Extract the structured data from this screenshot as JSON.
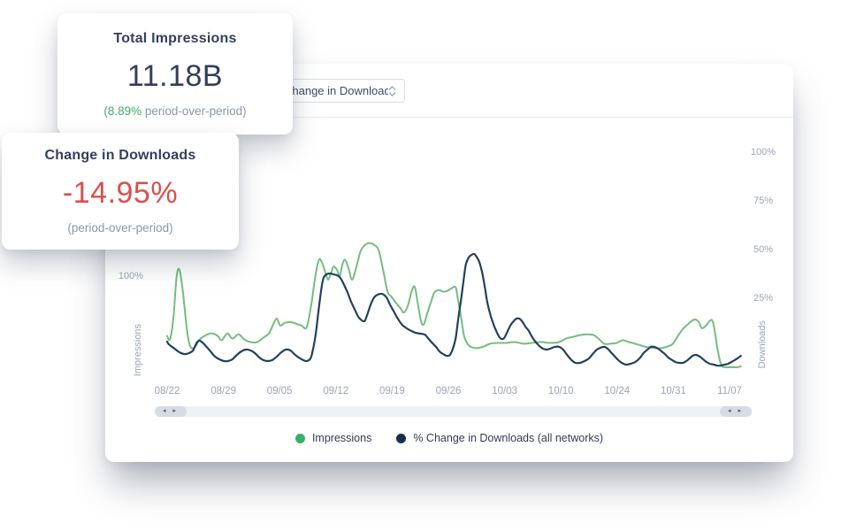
{
  "colors": {
    "impressions_line": "#74bd7e",
    "impressions_dot": "#36b06a",
    "downloads_line": "#24405e",
    "downloads_dot": "#152f4e",
    "negative_value": "#d9504c",
    "positive_delta": "#41ae66"
  },
  "stat_cards": [
    {
      "title": "Total Impressions",
      "value": "11.18B",
      "delta": "(8.89%",
      "delta_rest": " period-over-period)"
    },
    {
      "title": "Change in Downloads",
      "value": "-14.95%",
      "subtitle": "(period-over-period)"
    }
  ],
  "panel": {
    "select": {
      "value": "Change in Downloads"
    }
  },
  "scrollbar": {
    "left_arrows": "◂ ▸",
    "right_arrows": "◂ ▸"
  },
  "chart_data": {
    "type": "line",
    "title": "",
    "x_labels": [
      "08/22",
      "08/29",
      "09/05",
      "09/12",
      "09/19",
      "09/26",
      "10/03",
      "10/10",
      "10/24",
      "10/31",
      "11/07"
    ],
    "axes": {
      "left": {
        "title": "Impressions",
        "ticks": [
          {
            "label": "100%",
            "value": 100
          }
        ]
      },
      "right": {
        "title": "Downloads",
        "ticks": [
          {
            "label": "100%",
            "value": 100
          },
          {
            "label": "75%",
            "value": 75
          },
          {
            "label": "50%",
            "value": 50
          },
          {
            "label": "25%",
            "value": 25
          }
        ]
      }
    },
    "grid": false,
    "legend_position": "bottom",
    "legend": [
      {
        "label": "Impressions",
        "color": "#36b06a"
      },
      {
        "label": "% Change in Downloads (all networks)",
        "color": "#152f4e"
      }
    ],
    "series": [
      {
        "name": "Impressions",
        "axis": "left",
        "color": "#74bd7e",
        "unit": "% (left axis)",
        "points": [
          [
            0,
            31
          ],
          [
            0.05,
            27
          ],
          [
            0.11,
            51
          ],
          [
            0.17,
            100
          ],
          [
            0.22,
            107
          ],
          [
            0.28,
            82
          ],
          [
            0.35,
            39
          ],
          [
            0.41,
            19
          ],
          [
            0.49,
            18
          ],
          [
            0.58,
            27
          ],
          [
            0.69,
            32
          ],
          [
            0.8,
            34
          ],
          [
            0.9,
            31
          ],
          [
            0.97,
            26
          ],
          [
            1.07,
            34
          ],
          [
            1.16,
            28
          ],
          [
            1.27,
            33
          ],
          [
            1.37,
            27
          ],
          [
            1.48,
            24
          ],
          [
            1.6,
            24
          ],
          [
            1.71,
            29
          ],
          [
            1.81,
            34
          ],
          [
            1.89,
            45
          ],
          [
            1.95,
            51
          ],
          [
            2.01,
            43
          ],
          [
            2.09,
            46
          ],
          [
            2.19,
            47
          ],
          [
            2.3,
            45
          ],
          [
            2.39,
            43
          ],
          [
            2.48,
            41
          ],
          [
            2.56,
            66
          ],
          [
            2.64,
            102
          ],
          [
            2.7,
            119
          ],
          [
            2.75,
            116
          ],
          [
            2.81,
            105
          ],
          [
            2.86,
            96
          ],
          [
            2.91,
            103
          ],
          [
            2.96,
            111
          ],
          [
            3.02,
            107
          ],
          [
            3.07,
            100
          ],
          [
            3.11,
            112
          ],
          [
            3.16,
            119
          ],
          [
            3.22,
            110
          ],
          [
            3.29,
            96
          ],
          [
            3.37,
            112
          ],
          [
            3.44,
            129
          ],
          [
            3.52,
            136
          ],
          [
            3.6,
            138
          ],
          [
            3.68,
            136
          ],
          [
            3.76,
            130
          ],
          [
            3.84,
            107
          ],
          [
            3.92,
            82
          ],
          [
            3.99,
            76
          ],
          [
            4.07,
            69
          ],
          [
            4.15,
            63
          ],
          [
            4.21,
            58
          ],
          [
            4.28,
            66
          ],
          [
            4.34,
            81
          ],
          [
            4.4,
            88
          ],
          [
            4.45,
            71
          ],
          [
            4.51,
            49
          ],
          [
            4.56,
            44
          ],
          [
            4.62,
            56
          ],
          [
            4.69,
            70
          ],
          [
            4.75,
            81
          ],
          [
            4.83,
            84
          ],
          [
            4.91,
            82
          ],
          [
            4.98,
            83
          ],
          [
            5.06,
            86
          ],
          [
            5.13,
            87
          ],
          [
            5.17,
            73
          ],
          [
            5.22,
            55
          ],
          [
            5.28,
            31
          ],
          [
            5.35,
            21
          ],
          [
            5.42,
            18
          ],
          [
            5.52,
            17
          ],
          [
            5.63,
            19
          ],
          [
            5.74,
            22
          ],
          [
            5.86,
            23
          ],
          [
            6.02,
            23
          ],
          [
            6.18,
            24
          ],
          [
            6.34,
            22
          ],
          [
            6.49,
            23
          ],
          [
            6.65,
            24
          ],
          [
            6.81,
            23
          ],
          [
            6.97,
            24
          ],
          [
            7.09,
            28
          ],
          [
            7.22,
            30
          ],
          [
            7.34,
            32
          ],
          [
            7.47,
            33
          ],
          [
            7.58,
            32
          ],
          [
            7.67,
            28
          ],
          [
            7.77,
            22
          ],
          [
            7.88,
            22
          ],
          [
            7.99,
            23
          ],
          [
            8.1,
            26
          ],
          [
            8.21,
            24
          ],
          [
            8.32,
            22
          ],
          [
            8.43,
            20
          ],
          [
            8.54,
            18
          ],
          [
            8.66,
            17
          ],
          [
            8.79,
            17
          ],
          [
            8.9,
            19
          ],
          [
            8.99,
            22
          ],
          [
            9.09,
            32
          ],
          [
            9.17,
            39
          ],
          [
            9.25,
            44
          ],
          [
            9.32,
            48
          ],
          [
            9.39,
            50
          ],
          [
            9.45,
            47
          ],
          [
            9.51,
            40
          ],
          [
            9.58,
            43
          ],
          [
            9.64,
            48
          ],
          [
            9.69,
            49
          ],
          [
            9.73,
            39
          ],
          [
            9.78,
            18
          ],
          [
            9.83,
            2
          ],
          [
            9.87,
            -4
          ],
          [
            9.95,
            -5
          ],
          [
            10.05,
            -5
          ],
          [
            10.14,
            -5
          ],
          [
            10.2,
            -4
          ]
        ]
      },
      {
        "name": "% Change in Downloads (all networks)",
        "axis": "right",
        "color": "#24405e",
        "unit": "%",
        "points": [
          [
            0,
            0
          ],
          [
            0.03,
            -1.4
          ],
          [
            0.13,
            -3.6
          ],
          [
            0.22,
            -5.5
          ],
          [
            0.31,
            -6.4
          ],
          [
            0.39,
            -5.9
          ],
          [
            0.46,
            -4.5
          ],
          [
            0.52,
            -0.9
          ],
          [
            0.57,
            0.5
          ],
          [
            0.63,
            -0.5
          ],
          [
            0.69,
            -2.3
          ],
          [
            0.77,
            -5
          ],
          [
            0.85,
            -7.7
          ],
          [
            0.93,
            -9.1
          ],
          [
            1.01,
            -10
          ],
          [
            1.08,
            -10
          ],
          [
            1.16,
            -9.1
          ],
          [
            1.24,
            -6.8
          ],
          [
            1.32,
            -5
          ],
          [
            1.4,
            -4.1
          ],
          [
            1.48,
            -4.5
          ],
          [
            1.56,
            -5.9
          ],
          [
            1.64,
            -8.2
          ],
          [
            1.71,
            -9.5
          ],
          [
            1.79,
            -10
          ],
          [
            1.87,
            -9.5
          ],
          [
            1.95,
            -7.7
          ],
          [
            2.03,
            -5.5
          ],
          [
            2.11,
            -4.1
          ],
          [
            2.19,
            -4.5
          ],
          [
            2.26,
            -6.4
          ],
          [
            2.34,
            -8.2
          ],
          [
            2.42,
            -9.5
          ],
          [
            2.48,
            -10
          ],
          [
            2.55,
            -8.6
          ],
          [
            2.59,
            -4.5
          ],
          [
            2.64,
            3.6
          ],
          [
            2.69,
            15.5
          ],
          [
            2.74,
            26.8
          ],
          [
            2.78,
            32.7
          ],
          [
            2.83,
            34.5
          ],
          [
            2.89,
            35
          ],
          [
            2.96,
            34.5
          ],
          [
            3.02,
            34.1
          ],
          [
            3.08,
            32.7
          ],
          [
            3.14,
            29.5
          ],
          [
            3.21,
            25
          ],
          [
            3.27,
            20.5
          ],
          [
            3.33,
            16.8
          ],
          [
            3.4,
            12.7
          ],
          [
            3.46,
            10.9
          ],
          [
            3.51,
            10.5
          ],
          [
            3.55,
            13.2
          ],
          [
            3.62,
            19.1
          ],
          [
            3.68,
            22.7
          ],
          [
            3.74,
            24.1
          ],
          [
            3.82,
            24.5
          ],
          [
            3.9,
            22.7
          ],
          [
            3.96,
            19.1
          ],
          [
            4.03,
            15.5
          ],
          [
            4.1,
            11.8
          ],
          [
            4.18,
            8.6
          ],
          [
            4.26,
            6.8
          ],
          [
            4.34,
            5.5
          ],
          [
            4.42,
            4.5
          ],
          [
            4.5,
            4.1
          ],
          [
            4.58,
            3.6
          ],
          [
            4.65,
            1.4
          ],
          [
            4.72,
            -0.9
          ],
          [
            4.78,
            -2.7
          ],
          [
            4.84,
            -5
          ],
          [
            4.91,
            -6.4
          ],
          [
            4.97,
            -7.3
          ],
          [
            5.03,
            -6.8
          ],
          [
            5.08,
            -3.6
          ],
          [
            5.13,
            1.8
          ],
          [
            5.17,
            10.5
          ],
          [
            5.22,
            20.5
          ],
          [
            5.27,
            31.4
          ],
          [
            5.31,
            39.5
          ],
          [
            5.36,
            43.2
          ],
          [
            5.41,
            44.5
          ],
          [
            5.46,
            45
          ],
          [
            5.5,
            43.6
          ],
          [
            5.55,
            40.9
          ],
          [
            5.6,
            35.5
          ],
          [
            5.65,
            27.7
          ],
          [
            5.69,
            20.5
          ],
          [
            5.74,
            14.5
          ],
          [
            5.8,
            9.1
          ],
          [
            5.85,
            5.5
          ],
          [
            5.9,
            2.7
          ],
          [
            5.94,
            1.4
          ],
          [
            5.99,
            1.8
          ],
          [
            6.04,
            4.5
          ],
          [
            6.1,
            8.2
          ],
          [
            6.16,
            10.5
          ],
          [
            6.21,
            11.8
          ],
          [
            6.26,
            11.8
          ],
          [
            6.31,
            10.5
          ],
          [
            6.37,
            7.7
          ],
          [
            6.43,
            5.5
          ],
          [
            6.49,
            2.3
          ],
          [
            6.56,
            -0.5
          ],
          [
            6.62,
            -2.3
          ],
          [
            6.68,
            -3.6
          ],
          [
            6.75,
            -4.1
          ],
          [
            6.81,
            -3.6
          ],
          [
            6.89,
            -2.7
          ],
          [
            6.97,
            -2.7
          ],
          [
            7.04,
            -4.1
          ],
          [
            7.11,
            -6.8
          ],
          [
            7.19,
            -9.5
          ],
          [
            7.26,
            -10.9
          ],
          [
            7.34,
            -10.9
          ],
          [
            7.42,
            -10
          ],
          [
            7.5,
            -8.6
          ],
          [
            7.58,
            -5.9
          ],
          [
            7.64,
            -4.1
          ],
          [
            7.7,
            -3.2
          ],
          [
            7.77,
            -2.7
          ],
          [
            7.83,
            -3.6
          ],
          [
            7.89,
            -5.5
          ],
          [
            7.96,
            -7.7
          ],
          [
            8.02,
            -9.5
          ],
          [
            8.08,
            -10.9
          ],
          [
            8.16,
            -11.8
          ],
          [
            8.24,
            -11.4
          ],
          [
            8.32,
            -10.5
          ],
          [
            8.4,
            -8.6
          ],
          [
            8.47,
            -5.9
          ],
          [
            8.54,
            -4.1
          ],
          [
            8.6,
            -2.7
          ],
          [
            8.66,
            -2.7
          ],
          [
            8.73,
            -3.6
          ],
          [
            8.79,
            -5
          ],
          [
            8.85,
            -6.4
          ],
          [
            8.91,
            -8.2
          ],
          [
            8.98,
            -9.5
          ],
          [
            9.04,
            -10.5
          ],
          [
            9.1,
            -10.9
          ],
          [
            9.17,
            -10.9
          ],
          [
            9.23,
            -10
          ],
          [
            9.29,
            -8.6
          ],
          [
            9.34,
            -7.3
          ],
          [
            9.4,
            -6.8
          ],
          [
            9.47,
            -7.7
          ],
          [
            9.53,
            -9.1
          ],
          [
            9.59,
            -10.5
          ],
          [
            9.65,
            -11.4
          ],
          [
            9.72,
            -11.8
          ],
          [
            9.78,
            -12.3
          ],
          [
            9.84,
            -12.3
          ],
          [
            9.91,
            -11.8
          ],
          [
            9.97,
            -11.4
          ],
          [
            10.03,
            -10.5
          ],
          [
            10.09,
            -9.5
          ],
          [
            10.16,
            -8.2
          ],
          [
            10.2,
            -7.3
          ]
        ]
      }
    ]
  }
}
